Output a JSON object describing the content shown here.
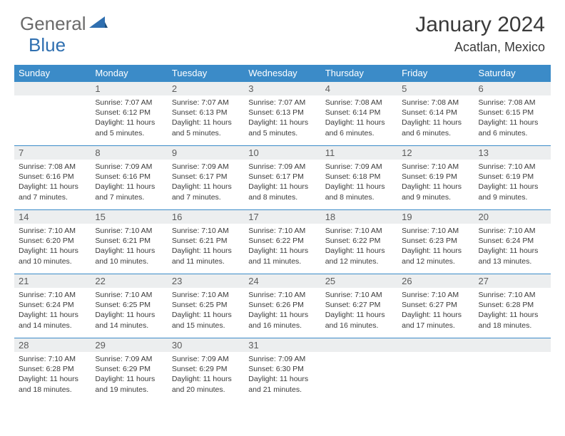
{
  "logo": {
    "text_general": "General",
    "text_blue": "Blue"
  },
  "title": "January 2024",
  "location": "Acatlan, Mexico",
  "colors": {
    "header_bg": "#3b8bc8",
    "header_text": "#ffffff",
    "daynum_bg": "#eceeef",
    "daynum_text": "#5c5c5c",
    "body_text": "#3a3a3a",
    "border": "#3b8bc8",
    "logo_gray": "#6a6a6a",
    "logo_blue": "#2f6fb0"
  },
  "day_names": [
    "Sunday",
    "Monday",
    "Tuesday",
    "Wednesday",
    "Thursday",
    "Friday",
    "Saturday"
  ],
  "layout": {
    "cols": 7,
    "rows": 5,
    "first_weekday_index": 1,
    "days_in_month": 31
  },
  "days": [
    {
      "n": 1,
      "sunrise": "7:07 AM",
      "sunset": "6:12 PM",
      "daylight": "11 hours and 5 minutes."
    },
    {
      "n": 2,
      "sunrise": "7:07 AM",
      "sunset": "6:13 PM",
      "daylight": "11 hours and 5 minutes."
    },
    {
      "n": 3,
      "sunrise": "7:07 AM",
      "sunset": "6:13 PM",
      "daylight": "11 hours and 5 minutes."
    },
    {
      "n": 4,
      "sunrise": "7:08 AM",
      "sunset": "6:14 PM",
      "daylight": "11 hours and 6 minutes."
    },
    {
      "n": 5,
      "sunrise": "7:08 AM",
      "sunset": "6:14 PM",
      "daylight": "11 hours and 6 minutes."
    },
    {
      "n": 6,
      "sunrise": "7:08 AM",
      "sunset": "6:15 PM",
      "daylight": "11 hours and 6 minutes."
    },
    {
      "n": 7,
      "sunrise": "7:08 AM",
      "sunset": "6:16 PM",
      "daylight": "11 hours and 7 minutes."
    },
    {
      "n": 8,
      "sunrise": "7:09 AM",
      "sunset": "6:16 PM",
      "daylight": "11 hours and 7 minutes."
    },
    {
      "n": 9,
      "sunrise": "7:09 AM",
      "sunset": "6:17 PM",
      "daylight": "11 hours and 7 minutes."
    },
    {
      "n": 10,
      "sunrise": "7:09 AM",
      "sunset": "6:17 PM",
      "daylight": "11 hours and 8 minutes."
    },
    {
      "n": 11,
      "sunrise": "7:09 AM",
      "sunset": "6:18 PM",
      "daylight": "11 hours and 8 minutes."
    },
    {
      "n": 12,
      "sunrise": "7:10 AM",
      "sunset": "6:19 PM",
      "daylight": "11 hours and 9 minutes."
    },
    {
      "n": 13,
      "sunrise": "7:10 AM",
      "sunset": "6:19 PM",
      "daylight": "11 hours and 9 minutes."
    },
    {
      "n": 14,
      "sunrise": "7:10 AM",
      "sunset": "6:20 PM",
      "daylight": "11 hours and 10 minutes."
    },
    {
      "n": 15,
      "sunrise": "7:10 AM",
      "sunset": "6:21 PM",
      "daylight": "11 hours and 10 minutes."
    },
    {
      "n": 16,
      "sunrise": "7:10 AM",
      "sunset": "6:21 PM",
      "daylight": "11 hours and 11 minutes."
    },
    {
      "n": 17,
      "sunrise": "7:10 AM",
      "sunset": "6:22 PM",
      "daylight": "11 hours and 11 minutes."
    },
    {
      "n": 18,
      "sunrise": "7:10 AM",
      "sunset": "6:22 PM",
      "daylight": "11 hours and 12 minutes."
    },
    {
      "n": 19,
      "sunrise": "7:10 AM",
      "sunset": "6:23 PM",
      "daylight": "11 hours and 12 minutes."
    },
    {
      "n": 20,
      "sunrise": "7:10 AM",
      "sunset": "6:24 PM",
      "daylight": "11 hours and 13 minutes."
    },
    {
      "n": 21,
      "sunrise": "7:10 AM",
      "sunset": "6:24 PM",
      "daylight": "11 hours and 14 minutes."
    },
    {
      "n": 22,
      "sunrise": "7:10 AM",
      "sunset": "6:25 PM",
      "daylight": "11 hours and 14 minutes."
    },
    {
      "n": 23,
      "sunrise": "7:10 AM",
      "sunset": "6:25 PM",
      "daylight": "11 hours and 15 minutes."
    },
    {
      "n": 24,
      "sunrise": "7:10 AM",
      "sunset": "6:26 PM",
      "daylight": "11 hours and 16 minutes."
    },
    {
      "n": 25,
      "sunrise": "7:10 AM",
      "sunset": "6:27 PM",
      "daylight": "11 hours and 16 minutes."
    },
    {
      "n": 26,
      "sunrise": "7:10 AM",
      "sunset": "6:27 PM",
      "daylight": "11 hours and 17 minutes."
    },
    {
      "n": 27,
      "sunrise": "7:10 AM",
      "sunset": "6:28 PM",
      "daylight": "11 hours and 18 minutes."
    },
    {
      "n": 28,
      "sunrise": "7:10 AM",
      "sunset": "6:28 PM",
      "daylight": "11 hours and 18 minutes."
    },
    {
      "n": 29,
      "sunrise": "7:09 AM",
      "sunset": "6:29 PM",
      "daylight": "11 hours and 19 minutes."
    },
    {
      "n": 30,
      "sunrise": "7:09 AM",
      "sunset": "6:29 PM",
      "daylight": "11 hours and 20 minutes."
    },
    {
      "n": 31,
      "sunrise": "7:09 AM",
      "sunset": "6:30 PM",
      "daylight": "11 hours and 21 minutes."
    }
  ],
  "labels": {
    "sunrise": "Sunrise:",
    "sunset": "Sunset:",
    "daylight": "Daylight:"
  }
}
